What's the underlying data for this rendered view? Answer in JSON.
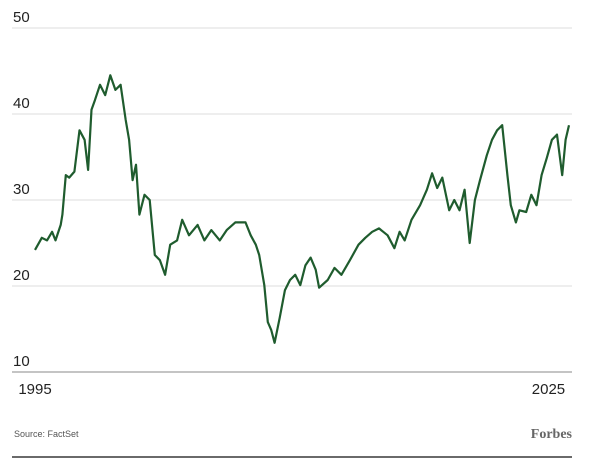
{
  "chart_data": {
    "type": "line",
    "source": "Source: FactSet",
    "brand": "Forbes",
    "x": [
      1995.0,
      1995.4,
      1995.7,
      1996.0,
      1996.2,
      1996.5,
      1996.6,
      1996.8,
      1997.0,
      1997.3,
      1997.6,
      1997.9,
      1998.1,
      1998.3,
      1998.5,
      1998.8,
      1999.1,
      1999.4,
      1999.7,
      2000.0,
      2000.3,
      2000.5,
      2000.7,
      2000.9,
      2001.1,
      2001.4,
      2001.7,
      2002.0,
      2002.3,
      2002.6,
      2002.9,
      2003.3,
      2003.6,
      2004.0,
      2004.5,
      2004.9,
      2005.3,
      2005.8,
      2006.2,
      2006.7,
      2007.3,
      2007.6,
      2007.9,
      2008.1,
      2008.4,
      2008.6,
      2008.8,
      2009.0,
      2009.3,
      2009.6,
      2009.9,
      2010.2,
      2010.5,
      2010.8,
      2011.1,
      2011.4,
      2011.6,
      2012.1,
      2012.5,
      2012.9,
      2013.4,
      2013.9,
      2014.3,
      2014.7,
      2015.1,
      2015.6,
      2016.0,
      2016.3,
      2016.6,
      2017.0,
      2017.5,
      2017.9,
      2018.2,
      2018.5,
      2018.8,
      2019.2,
      2019.5,
      2019.8,
      2020.1,
      2020.4,
      2020.7,
      2021.0,
      2021.4,
      2021.7,
      2022.0,
      2022.3,
      2022.6,
      2022.8,
      2023.1,
      2023.3,
      2023.7,
      2024.0,
      2024.3,
      2024.6,
      2024.9,
      2025.2,
      2025.5,
      2025.8,
      2026.0,
      2026.2
    ],
    "series": [
      {
        "color": "#1f5c2e",
        "values": [
          24.2,
          25.6,
          25.3,
          26.3,
          25.3,
          27.1,
          28.3,
          32.9,
          32.6,
          33.3,
          38.1,
          37.0,
          33.5,
          40.5,
          41.6,
          43.4,
          42.2,
          44.5,
          42.8,
          43.4,
          39.3,
          37.0,
          32.3,
          34.1,
          28.3,
          30.6,
          30.0,
          23.6,
          23.0,
          21.3,
          24.8,
          25.3,
          27.7,
          25.9,
          27.1,
          25.3,
          26.5,
          25.3,
          26.5,
          27.4,
          27.4,
          25.9,
          24.8,
          23.6,
          20.1,
          15.8,
          14.9,
          13.4,
          16.3,
          19.5,
          20.7,
          21.3,
          20.1,
          22.4,
          23.3,
          21.9,
          19.8,
          20.7,
          22.1,
          21.3,
          23.0,
          24.8,
          25.6,
          26.3,
          26.7,
          25.9,
          24.4,
          26.3,
          25.3,
          27.7,
          29.4,
          31.2,
          33.1,
          31.4,
          32.6,
          28.8,
          30.0,
          28.8,
          31.2,
          25.0,
          30.0,
          32.3,
          35.2,
          37.0,
          38.1,
          38.7,
          32.9,
          29.4,
          27.4,
          28.8,
          28.6,
          30.6,
          29.4,
          32.9,
          34.9,
          37.0,
          37.6,
          32.9,
          37.0,
          38.7
        ]
      }
    ],
    "xlim": [
      1995,
      2026.2
    ],
    "xticks": [
      1995,
      2025
    ],
    "ylim": [
      10,
      50
    ],
    "yticks": [
      10,
      20,
      30,
      40,
      50
    ],
    "grid": true
  }
}
